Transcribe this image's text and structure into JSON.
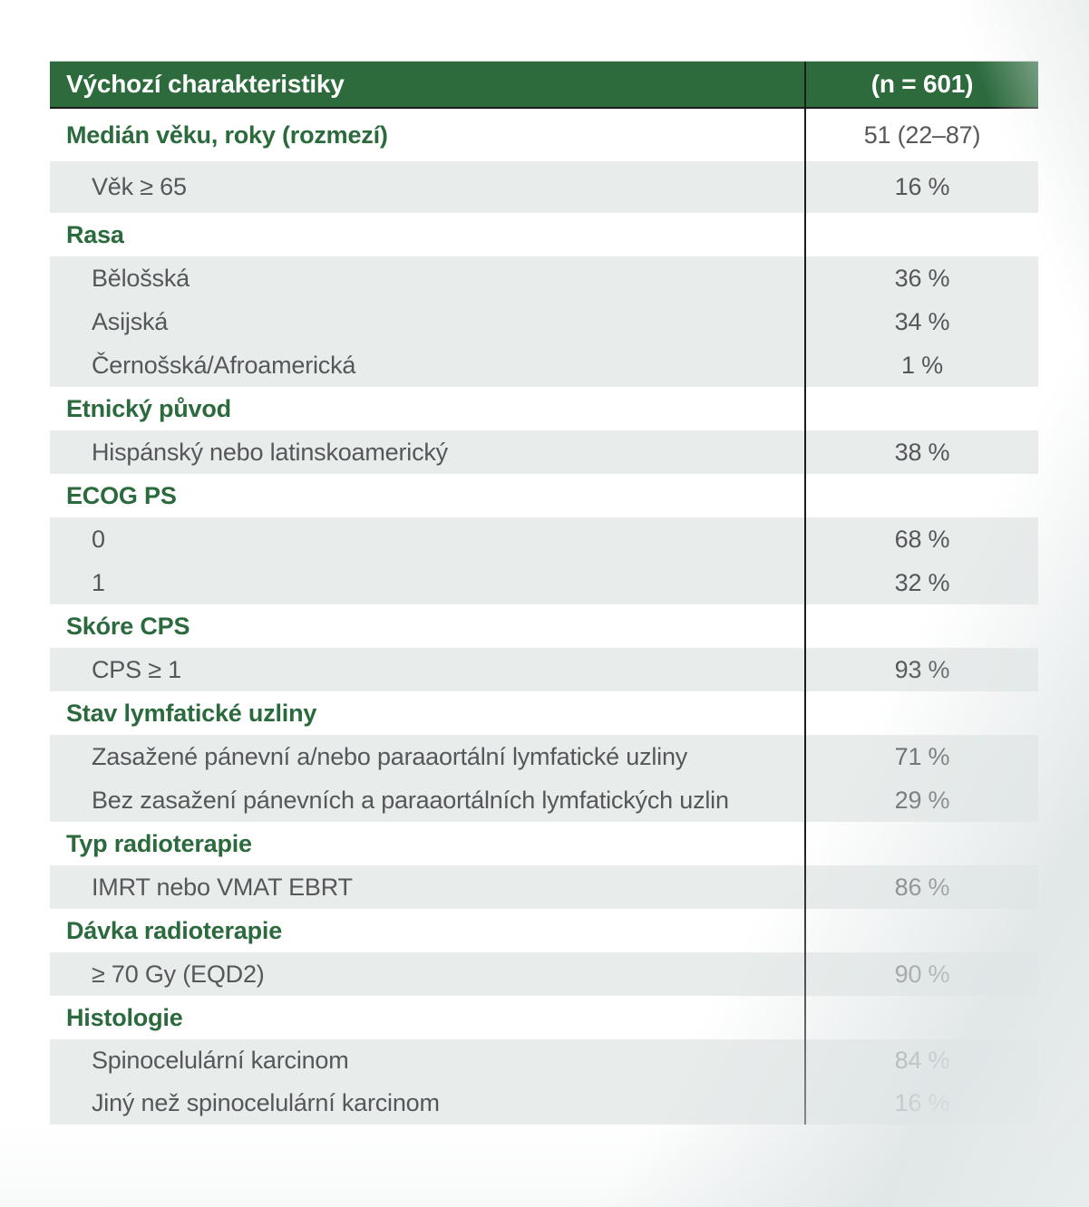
{
  "colors": {
    "header_green": "#2D6B3D",
    "section_text": "#2A6A3C",
    "body_text": "#55575A",
    "row_shade": "#E8ECEB",
    "divider": "#1C1C1C",
    "corner_green": "#C6DEC0"
  },
  "table": {
    "header": {
      "label": "Výchozí charakteristiky",
      "value": "(n = 601)"
    },
    "rows": [
      {
        "kind": "section",
        "shaded": false,
        "label": "Medián věku, roky (rozmezí)",
        "value": "51 (22–87)"
      },
      {
        "kind": "item",
        "shaded": true,
        "label": "Věk ≥ 65",
        "value": "16 %"
      },
      {
        "kind": "section",
        "shaded": false,
        "label": "Rasa",
        "value": ""
      },
      {
        "kind": "item",
        "shaded": true,
        "label": "Bělošská",
        "value": "36 %"
      },
      {
        "kind": "item",
        "shaded": true,
        "label": "Asijská",
        "value": "34 %"
      },
      {
        "kind": "item",
        "shaded": true,
        "label": "Černošská/Afroamerická",
        "value": "1 %"
      },
      {
        "kind": "section",
        "shaded": false,
        "label": "Etnický původ",
        "value": ""
      },
      {
        "kind": "item",
        "shaded": true,
        "label": "Hispánský nebo latinskoamerický",
        "value": "38 %"
      },
      {
        "kind": "section",
        "shaded": false,
        "label": "ECOG PS",
        "value": ""
      },
      {
        "kind": "item",
        "shaded": true,
        "label": "0",
        "value": "68 %"
      },
      {
        "kind": "item",
        "shaded": true,
        "label": "1",
        "value": "32 %"
      },
      {
        "kind": "section",
        "shaded": false,
        "label": "Skóre CPS",
        "value": ""
      },
      {
        "kind": "item",
        "shaded": true,
        "label": "CPS ≥ 1",
        "value": "93 %"
      },
      {
        "kind": "section",
        "shaded": false,
        "label": "Stav lymfatické uzliny",
        "value": ""
      },
      {
        "kind": "item",
        "shaded": true,
        "label": "Zasažené pánevní a/nebo paraaortální lymfatické uzliny",
        "value": "71 %"
      },
      {
        "kind": "item",
        "shaded": true,
        "label": "Bez zasažení pánevních a paraaortálních lymfatických uzlin",
        "value": "29 %"
      },
      {
        "kind": "section",
        "shaded": false,
        "label": "Typ radioterapie",
        "value": ""
      },
      {
        "kind": "item",
        "shaded": true,
        "label": "IMRT nebo VMAT EBRT",
        "value": "86 %"
      },
      {
        "kind": "section",
        "shaded": false,
        "label": "Dávka radioterapie",
        "value": ""
      },
      {
        "kind": "item",
        "shaded": true,
        "label": "≥ 70 Gy (EQD2)",
        "value": "90 %"
      },
      {
        "kind": "section",
        "shaded": false,
        "label": "Histologie",
        "value": ""
      },
      {
        "kind": "item",
        "shaded": true,
        "label": "Spinocelulární karcinom",
        "value": "84 %"
      },
      {
        "kind": "item",
        "shaded": true,
        "label": "Jiný než spinocelulární karcinom",
        "value": "16 %"
      }
    ]
  }
}
